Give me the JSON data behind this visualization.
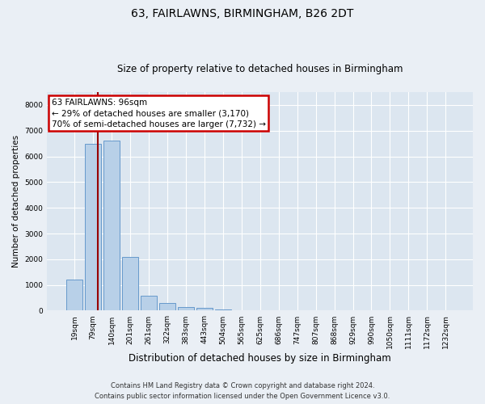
{
  "title": "63, FAIRLAWNS, BIRMINGHAM, B26 2DT",
  "subtitle": "Size of property relative to detached houses in Birmingham",
  "xlabel": "Distribution of detached houses by size in Birmingham",
  "ylabel": "Number of detached properties",
  "footer_line1": "Contains HM Land Registry data © Crown copyright and database right 2024.",
  "footer_line2": "Contains public sector information licensed under the Open Government Licence v3.0.",
  "bin_labels": [
    "19sqm",
    "79sqm",
    "140sqm",
    "201sqm",
    "261sqm",
    "322sqm",
    "383sqm",
    "443sqm",
    "504sqm",
    "565sqm",
    "625sqm",
    "686sqm",
    "747sqm",
    "807sqm",
    "868sqm",
    "929sqm",
    "990sqm",
    "1050sqm",
    "1111sqm",
    "1172sqm",
    "1232sqm"
  ],
  "bar_values": [
    1200,
    6500,
    6600,
    2100,
    580,
    300,
    150,
    120,
    60,
    20,
    5,
    5,
    5,
    5,
    5,
    5,
    5,
    5,
    5,
    5,
    5
  ],
  "vline_x": 1.27,
  "annotation_text": "63 FAIRLAWNS: 96sqm\n← 29% of detached houses are smaller (3,170)\n70% of semi-detached houses are larger (7,732) →",
  "bar_color": "#b8d0e8",
  "bar_edge_color": "#6699cc",
  "vline_color": "#990000",
  "annotation_box_color": "#ffffff",
  "annotation_box_edge": "#cc0000",
  "bg_color": "#eaeff5",
  "plot_bg_color": "#dce6f0",
  "grid_color": "#ffffff",
  "ylim": [
    0,
    8500
  ],
  "yticks": [
    0,
    1000,
    2000,
    3000,
    4000,
    5000,
    6000,
    7000,
    8000
  ],
  "title_fontsize": 10,
  "subtitle_fontsize": 8.5,
  "ylabel_fontsize": 7.5,
  "xlabel_fontsize": 8.5,
  "tick_fontsize": 6.5,
  "annotation_fontsize": 7.5,
  "footer_fontsize": 6.0
}
